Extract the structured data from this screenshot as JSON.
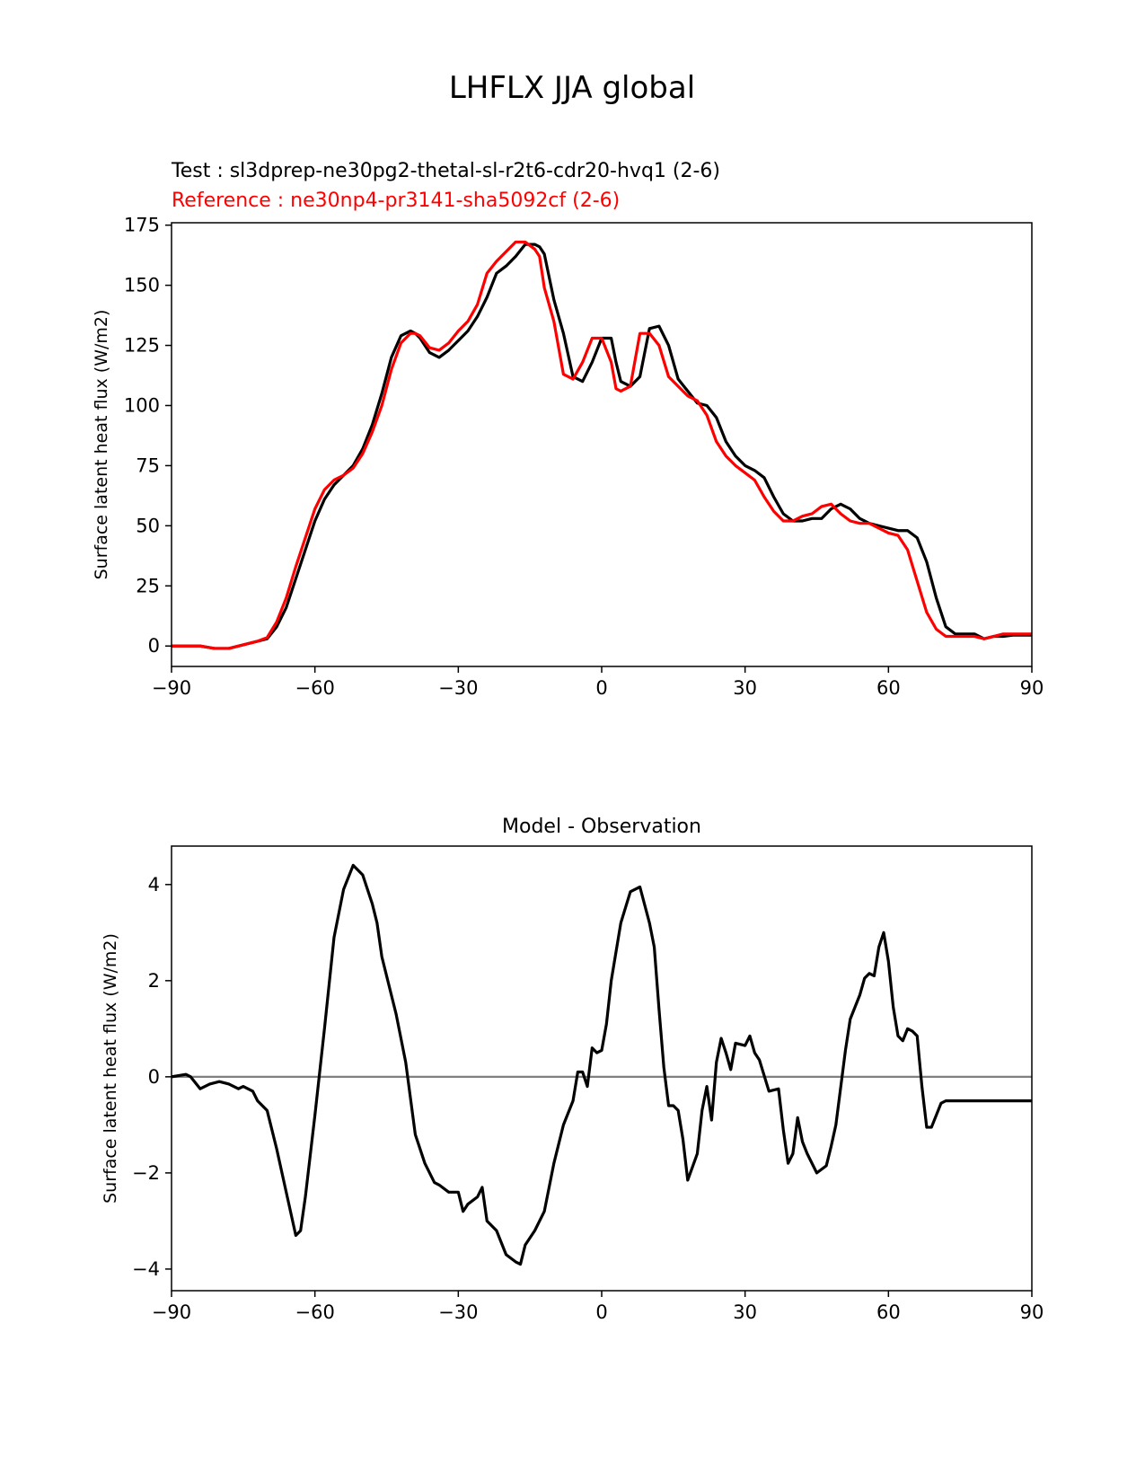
{
  "figure": {
    "title": "LHFLX JJA global"
  },
  "chart_data": [
    {
      "type": "line",
      "title_lines": [
        {
          "text": "Test : sl3dprep-ne30pg2-thetal-sl-r2t6-cdr20-hvq1 (2-6)",
          "color": "#000000"
        },
        {
          "text": "Reference : ne30np4-pr3141-sha5092cf (2-6)",
          "color": "#ff0000"
        }
      ],
      "xlabel": "",
      "ylabel": "Surface latent heat flux (W/m2)",
      "xlim": [
        -90,
        90
      ],
      "ylim": [
        -8.5,
        176
      ],
      "xticks": [
        -90,
        -60,
        -30,
        0,
        30,
        60,
        90
      ],
      "xtick_labels": [
        "−90",
        "−60",
        "−30",
        "0",
        "30",
        "60",
        "90"
      ],
      "yticks": [
        0,
        25,
        50,
        75,
        100,
        125,
        150,
        175
      ],
      "ytick_labels": [
        "0",
        "25",
        "50",
        "75",
        "100",
        "125",
        "150",
        "175"
      ],
      "grid": false,
      "series": [
        {
          "color": "#000000",
          "x": [
            -90,
            -87,
            -84,
            -81,
            -78,
            -75,
            -72,
            -70,
            -68,
            -66,
            -64,
            -62,
            -60,
            -58,
            -56,
            -54,
            -52,
            -50,
            -48,
            -46,
            -44,
            -42,
            -40,
            -39,
            -38,
            -36,
            -34,
            -32,
            -30,
            -28,
            -26,
            -24,
            -22,
            -20,
            -18,
            -16,
            -14,
            -13,
            -12,
            -10,
            -8,
            -6,
            -4,
            -2,
            0,
            2,
            3,
            4,
            6,
            8,
            10,
            12,
            14,
            16,
            18,
            20,
            22,
            24,
            26,
            28,
            30,
            32,
            34,
            36,
            38,
            40,
            42,
            44,
            46,
            48,
            50,
            52,
            54,
            56,
            58,
            60,
            62,
            64,
            66,
            68,
            70,
            72,
            74,
            76,
            78,
            80,
            82,
            84,
            86,
            88,
            90
          ],
          "values": [
            0,
            0,
            0,
            -1,
            -1,
            0.5,
            2,
            3,
            8,
            16,
            28,
            40,
            52,
            61,
            67,
            71,
            75,
            82,
            92,
            105,
            120,
            129,
            131,
            130,
            128,
            122,
            120,
            123,
            127,
            131,
            137,
            145,
            155,
            158,
            162,
            167,
            167,
            166,
            163,
            144,
            130,
            112,
            110,
            118,
            128,
            128,
            118,
            110,
            108,
            112,
            132,
            133,
            125,
            111,
            106,
            101,
            100,
            95,
            85,
            79,
            75,
            73,
            70,
            62,
            55,
            52,
            52,
            53,
            53,
            57,
            59,
            57,
            53,
            51,
            50,
            49,
            48,
            48,
            45,
            35,
            20,
            8,
            5,
            5,
            5,
            3,
            4,
            4,
            4.5,
            4.5,
            4.5
          ]
        },
        {
          "color": "#ff0000",
          "x": [
            -90,
            -87,
            -84,
            -81,
            -78,
            -75,
            -72,
            -70,
            -68,
            -66,
            -64,
            -62,
            -60,
            -58,
            -56,
            -54,
            -52,
            -50,
            -48,
            -46,
            -44,
            -42,
            -40,
            -39,
            -38,
            -36,
            -34,
            -32,
            -30,
            -28,
            -26,
            -24,
            -22,
            -20,
            -18,
            -16,
            -14,
            -13,
            -12,
            -10,
            -8,
            -6,
            -4,
            -2,
            0,
            2,
            3,
            4,
            6,
            8,
            10,
            12,
            14,
            16,
            18,
            20,
            22,
            24,
            26,
            28,
            30,
            32,
            34,
            36,
            38,
            40,
            42,
            44,
            46,
            48,
            50,
            52,
            54,
            56,
            58,
            60,
            62,
            64,
            66,
            68,
            70,
            72,
            74,
            76,
            78,
            80,
            82,
            84,
            86,
            88,
            90
          ],
          "values": [
            0,
            0,
            0,
            -1,
            -1,
            0.5,
            2,
            3.5,
            10,
            20,
            33,
            45,
            57,
            65,
            69,
            71,
            74,
            80,
            89,
            100,
            115,
            126,
            130,
            130,
            129,
            124,
            123,
            126,
            131,
            135,
            142,
            155,
            160,
            164,
            168,
            168,
            165,
            162,
            149,
            135,
            113,
            111,
            118,
            128,
            128,
            118,
            107,
            106,
            108,
            130,
            130,
            125,
            112,
            108,
            104,
            102,
            96,
            85,
            79,
            75,
            72,
            69,
            62,
            56,
            52,
            52,
            54,
            55,
            58,
            59,
            55,
            52,
            51,
            51,
            49,
            47,
            46,
            40,
            27,
            14,
            7,
            4,
            4,
            4,
            4,
            3,
            4,
            5,
            5,
            5,
            5
          ]
        }
      ]
    },
    {
      "type": "line",
      "title": "Model - Observation",
      "xlabel": "",
      "ylabel": "Surface latent heat flux (W/m2)",
      "xlim": [
        -90,
        90
      ],
      "ylim": [
        -4.45,
        4.8
      ],
      "xticks": [
        -90,
        -60,
        -30,
        0,
        30,
        60,
        90
      ],
      "xtick_labels": [
        "−90",
        "−60",
        "−30",
        "0",
        "30",
        "60",
        "90"
      ],
      "yticks": [
        -4,
        -2,
        0,
        2,
        4
      ],
      "ytick_labels": [
        "−4",
        "−2",
        "0",
        "2",
        "4"
      ],
      "grid": false,
      "zero_line": {
        "y": 0,
        "color": "#808080"
      },
      "series": [
        {
          "color": "#000000",
          "x": [
            -90,
            -87,
            -86,
            -84,
            -82,
            -80,
            -78,
            -76,
            -75,
            -73,
            -72,
            -70,
            -68,
            -66,
            -64,
            -63,
            -62,
            -60,
            -58,
            -56,
            -54,
            -52,
            -50,
            -48,
            -47,
            -46,
            -44,
            -43,
            -41,
            -39,
            -37,
            -35,
            -34,
            -32,
            -30,
            -29,
            -28,
            -26,
            -25,
            -24,
            -22,
            -20,
            -18,
            -17,
            -16,
            -14,
            -12,
            -10,
            -8,
            -6,
            -5,
            -4,
            -3,
            -2,
            -1,
            0,
            1,
            2,
            4,
            6,
            8,
            10,
            11,
            12,
            13,
            14,
            15,
            16,
            17,
            18,
            20,
            21,
            22,
            23,
            24,
            25,
            26,
            27,
            28,
            30,
            31,
            32,
            33,
            35,
            37,
            38,
            39,
            40,
            41,
            42,
            43,
            45,
            47,
            48,
            49,
            51,
            52,
            54,
            55,
            56,
            57,
            58,
            59,
            60,
            61,
            62,
            63,
            64,
            65,
            66,
            67,
            68,
            69,
            70,
            71,
            72,
            73,
            74,
            75,
            76,
            77,
            78,
            79,
            80,
            81,
            82,
            83,
            84,
            85,
            86,
            87,
            88,
            89,
            90
          ],
          "values": [
            0,
            0.05,
            0,
            -0.25,
            -0.15,
            -0.1,
            -0.15,
            -0.25,
            -0.2,
            -0.3,
            -0.5,
            -0.7,
            -1.5,
            -2.4,
            -3.3,
            -3.2,
            -2.5,
            -0.8,
            1.0,
            2.9,
            3.9,
            4.4,
            4.2,
            3.6,
            3.2,
            2.5,
            1.7,
            1.3,
            0.3,
            -1.2,
            -1.8,
            -2.2,
            -2.25,
            -2.4,
            -2.4,
            -2.8,
            -2.65,
            -2.5,
            -2.3,
            -3.0,
            -3.2,
            -3.7,
            -3.85,
            -3.9,
            -3.5,
            -3.2,
            -2.8,
            -1.8,
            -1.0,
            -0.5,
            0.1,
            0.1,
            -0.2,
            0.6,
            0.5,
            0.55,
            1.1,
            2.0,
            3.2,
            3.85,
            3.95,
            3.2,
            2.7,
            1.4,
            0.2,
            -0.6,
            -0.6,
            -0.7,
            -1.3,
            -2.15,
            -1.6,
            -0.7,
            -0.2,
            -0.9,
            0.3,
            0.8,
            0.5,
            0.15,
            0.7,
            0.65,
            0.85,
            0.5,
            0.35,
            -0.3,
            -0.25,
            -1.1,
            -1.8,
            -1.6,
            -0.85,
            -1.35,
            -1.6,
            -2.0,
            -1.85,
            -1.45,
            -1.0,
            0.55,
            1.2,
            1.7,
            2.05,
            2.15,
            2.1,
            2.7,
            3.0,
            2.4,
            1.45,
            0.85,
            0.75,
            1.0,
            0.95,
            0.85,
            -0.2,
            -1.05,
            -1.05,
            -0.8,
            -0.55,
            -0.5,
            -0.5,
            -0.5,
            -0.5,
            -0.5,
            -0.5,
            -0.5,
            -0.5,
            -0.5,
            -0.5,
            -0.5,
            -0.5,
            -0.5,
            -0.5,
            -0.5,
            -0.5,
            -0.5,
            -0.5,
            -0.5
          ]
        }
      ]
    }
  ]
}
